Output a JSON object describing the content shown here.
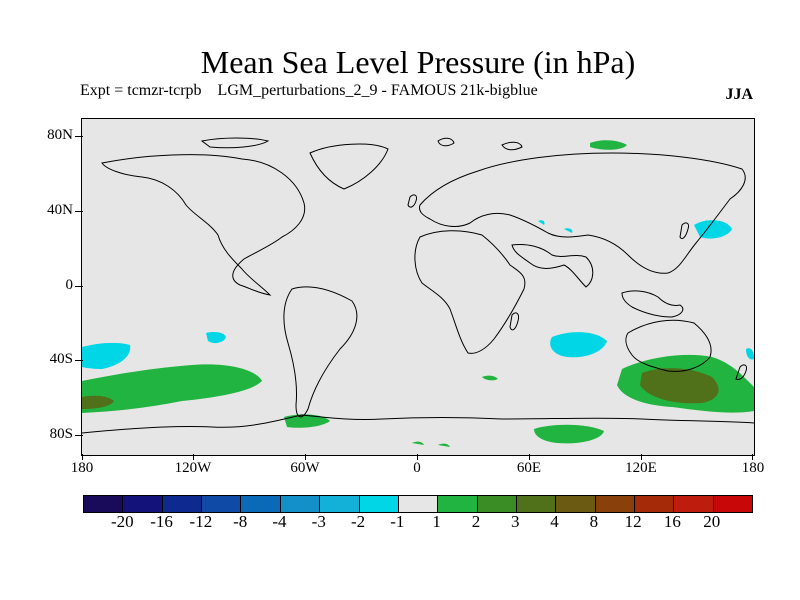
{
  "title": "Mean Sea Level Pressure (in hPa)",
  "subtitle": "Expt = tcmzr-tcrpb    LGM_perturbations_2_9 - FAMOUS 21k-bigblue",
  "season": "JJA",
  "map": {
    "projection": "cylindrical-equidistant",
    "lat_labels": [
      "80N",
      "40N",
      "0",
      "40S",
      "80S"
    ],
    "lon_labels": [
      "180",
      "120W",
      "60W",
      "0",
      "60E",
      "120E",
      "180"
    ]
  },
  "colorbar": {
    "colors": [
      "#1a0a5a",
      "#12127a",
      "#0f2a8e",
      "#0e4aa6",
      "#0a6ab8",
      "#1390c8",
      "#13b0d8",
      "#00d6e6",
      "#e6e6e6",
      "#22b440",
      "#3a8c24",
      "#50701a",
      "#6a5a12",
      "#8a400a",
      "#a42a08",
      "#be1c0c",
      "#c80808"
    ],
    "labels": [
      "-20",
      "-16",
      "-12",
      "-8",
      "-4",
      "-3",
      "-2",
      "-1",
      "1",
      "2",
      "3",
      "4",
      "8",
      "12",
      "16",
      "20"
    ]
  },
  "colors": {
    "land_outline": "#000000",
    "background": "#e6e6e6",
    "light_green": "#22b440",
    "dark_green": "#50701a",
    "cyan": "#00d6e6",
    "mid_green": "#3a8c24"
  }
}
